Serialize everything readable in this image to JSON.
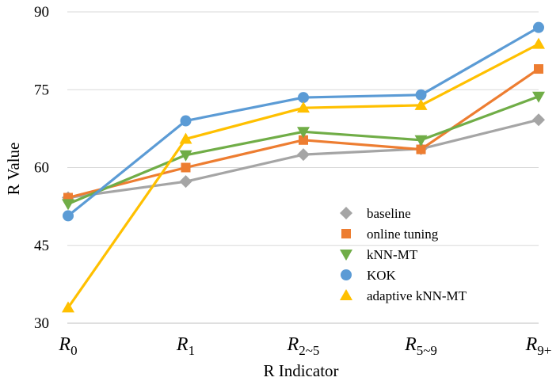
{
  "chart_data": {
    "type": "line",
    "title": "",
    "xlabel": "R Indicator",
    "ylabel": "R Value",
    "ylim": [
      30,
      90
    ],
    "yticks": [
      30,
      45,
      60,
      75,
      90
    ],
    "grid": true,
    "legend_position": "bottom-right",
    "categories": [
      {
        "main": "R",
        "sub": "0"
      },
      {
        "main": "R",
        "sub": "1"
      },
      {
        "main": "R",
        "sub": "2~5"
      },
      {
        "main": "R",
        "sub": "5~9"
      },
      {
        "main": "R",
        "sub": "9+"
      }
    ],
    "series": [
      {
        "name": "baseline",
        "marker": "diamond",
        "color": "#A5A5A5",
        "values": [
          54.2,
          57.3,
          62.5,
          63.6,
          69.2
        ]
      },
      {
        "name": "online tuning",
        "marker": "square",
        "color": "#ED7D31",
        "values": [
          54.2,
          60.0,
          65.3,
          63.5,
          79.0
        ]
      },
      {
        "name": "kNN-MT",
        "marker": "triangle-down",
        "color": "#70AD47",
        "values": [
          53.0,
          62.4,
          66.9,
          65.3,
          73.7
        ]
      },
      {
        "name": "KOK",
        "marker": "circle",
        "color": "#5B9BD5",
        "values": [
          50.7,
          69.0,
          73.5,
          74.0,
          87.0
        ]
      },
      {
        "name": "adaptive kNN-MT",
        "marker": "triangle-up",
        "color": "#FFC000",
        "values": [
          33.0,
          65.5,
          71.5,
          72.0,
          83.8
        ]
      }
    ]
  }
}
